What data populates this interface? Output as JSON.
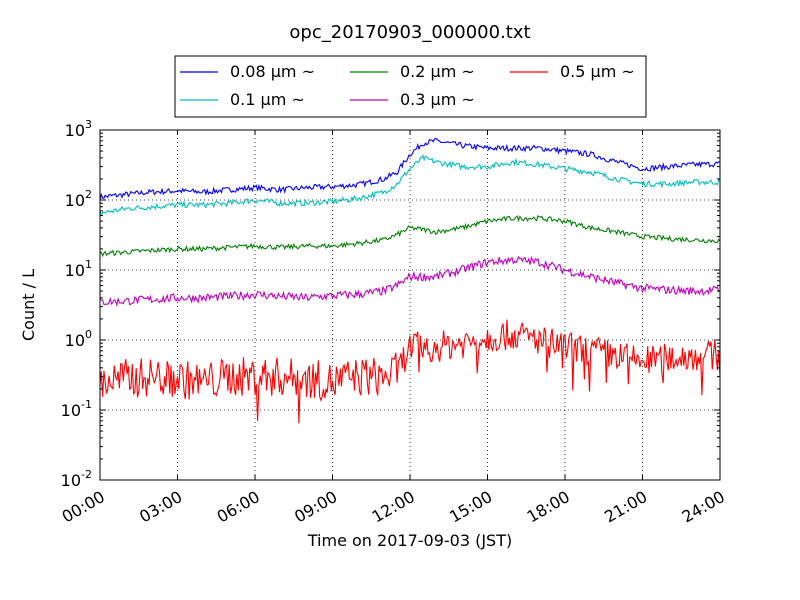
{
  "chart_data": {
    "type": "line",
    "title": "opc_20170903_000000.txt",
    "xlabel": "Time on 2017-09-03 (JST)",
    "ylabel": "Count / L",
    "yscale": "log",
    "ylim": [
      0.01,
      1000
    ],
    "xlim": [
      "2017-09-03 00:00",
      "2017-09-04 00:00"
    ],
    "grid": true,
    "legend_position": "top-center",
    "x_ticks": [
      "00:00",
      "03:00",
      "06:00",
      "09:00",
      "12:00",
      "15:00",
      "18:00",
      "21:00",
      "24:00"
    ],
    "y_ticks": [
      {
        "base": "10",
        "exp": "-2"
      },
      {
        "base": "10",
        "exp": "-1"
      },
      {
        "base": "10",
        "exp": "0"
      },
      {
        "base": "10",
        "exp": "1"
      },
      {
        "base": "10",
        "exp": "2"
      },
      {
        "base": "10",
        "exp": "3"
      }
    ],
    "x": [
      "00:00",
      "01:00",
      "02:00",
      "03:00",
      "04:00",
      "05:00",
      "06:00",
      "07:00",
      "08:00",
      "09:00",
      "10:00",
      "11:00",
      "11:30",
      "12:00",
      "12:30",
      "13:00",
      "14:00",
      "15:00",
      "16:00",
      "17:00",
      "18:00",
      "19:00",
      "20:00",
      "21:00",
      "22:00",
      "23:00",
      "24:00"
    ],
    "series": [
      {
        "name": "0.08 μm ~",
        "color": "#0000ff",
        "values": [
          110,
          120,
          130,
          135,
          130,
          140,
          150,
          140,
          150,
          155,
          165,
          200,
          250,
          450,
          650,
          700,
          600,
          550,
          550,
          550,
          500,
          450,
          350,
          280,
          300,
          320,
          330
        ]
      },
      {
        "name": "0.1 μm ~",
        "color": "#00bfbf",
        "values": [
          65,
          75,
          80,
          85,
          85,
          90,
          100,
          90,
          90,
          95,
          105,
          130,
          170,
          280,
          400,
          350,
          300,
          300,
          350,
          320,
          280,
          250,
          200,
          170,
          170,
          180,
          180
        ]
      },
      {
        "name": "0.2 μm ~",
        "color": "#008000",
        "values": [
          17,
          18,
          19,
          20,
          20,
          21,
          22,
          21,
          22,
          22,
          24,
          27,
          32,
          40,
          38,
          35,
          40,
          50,
          55,
          55,
          50,
          40,
          35,
          30,
          28,
          27,
          26
        ]
      },
      {
        "name": "0.3 μm ~",
        "color": "#bf00bf",
        "values": [
          3.5,
          3.6,
          3.8,
          4.0,
          4.0,
          4.2,
          4.5,
          4.2,
          4.0,
          4.3,
          4.5,
          5.0,
          6.0,
          8.0,
          8.0,
          8.0,
          10.0,
          13.0,
          14.0,
          13.0,
          10.0,
          8.0,
          6.5,
          5.5,
          5.2,
          5.0,
          5.2
        ]
      },
      {
        "name": "0.5 μm ~",
        "color": "#ff0000",
        "values": [
          0.25,
          0.28,
          0.3,
          0.28,
          0.25,
          0.3,
          0.3,
          0.3,
          0.28,
          0.25,
          0.3,
          0.3,
          0.35,
          0.8,
          0.8,
          0.8,
          0.9,
          1.1,
          1.2,
          1.0,
          0.8,
          0.7,
          0.6,
          0.5,
          0.55,
          0.6,
          0.6
        ]
      }
    ]
  }
}
